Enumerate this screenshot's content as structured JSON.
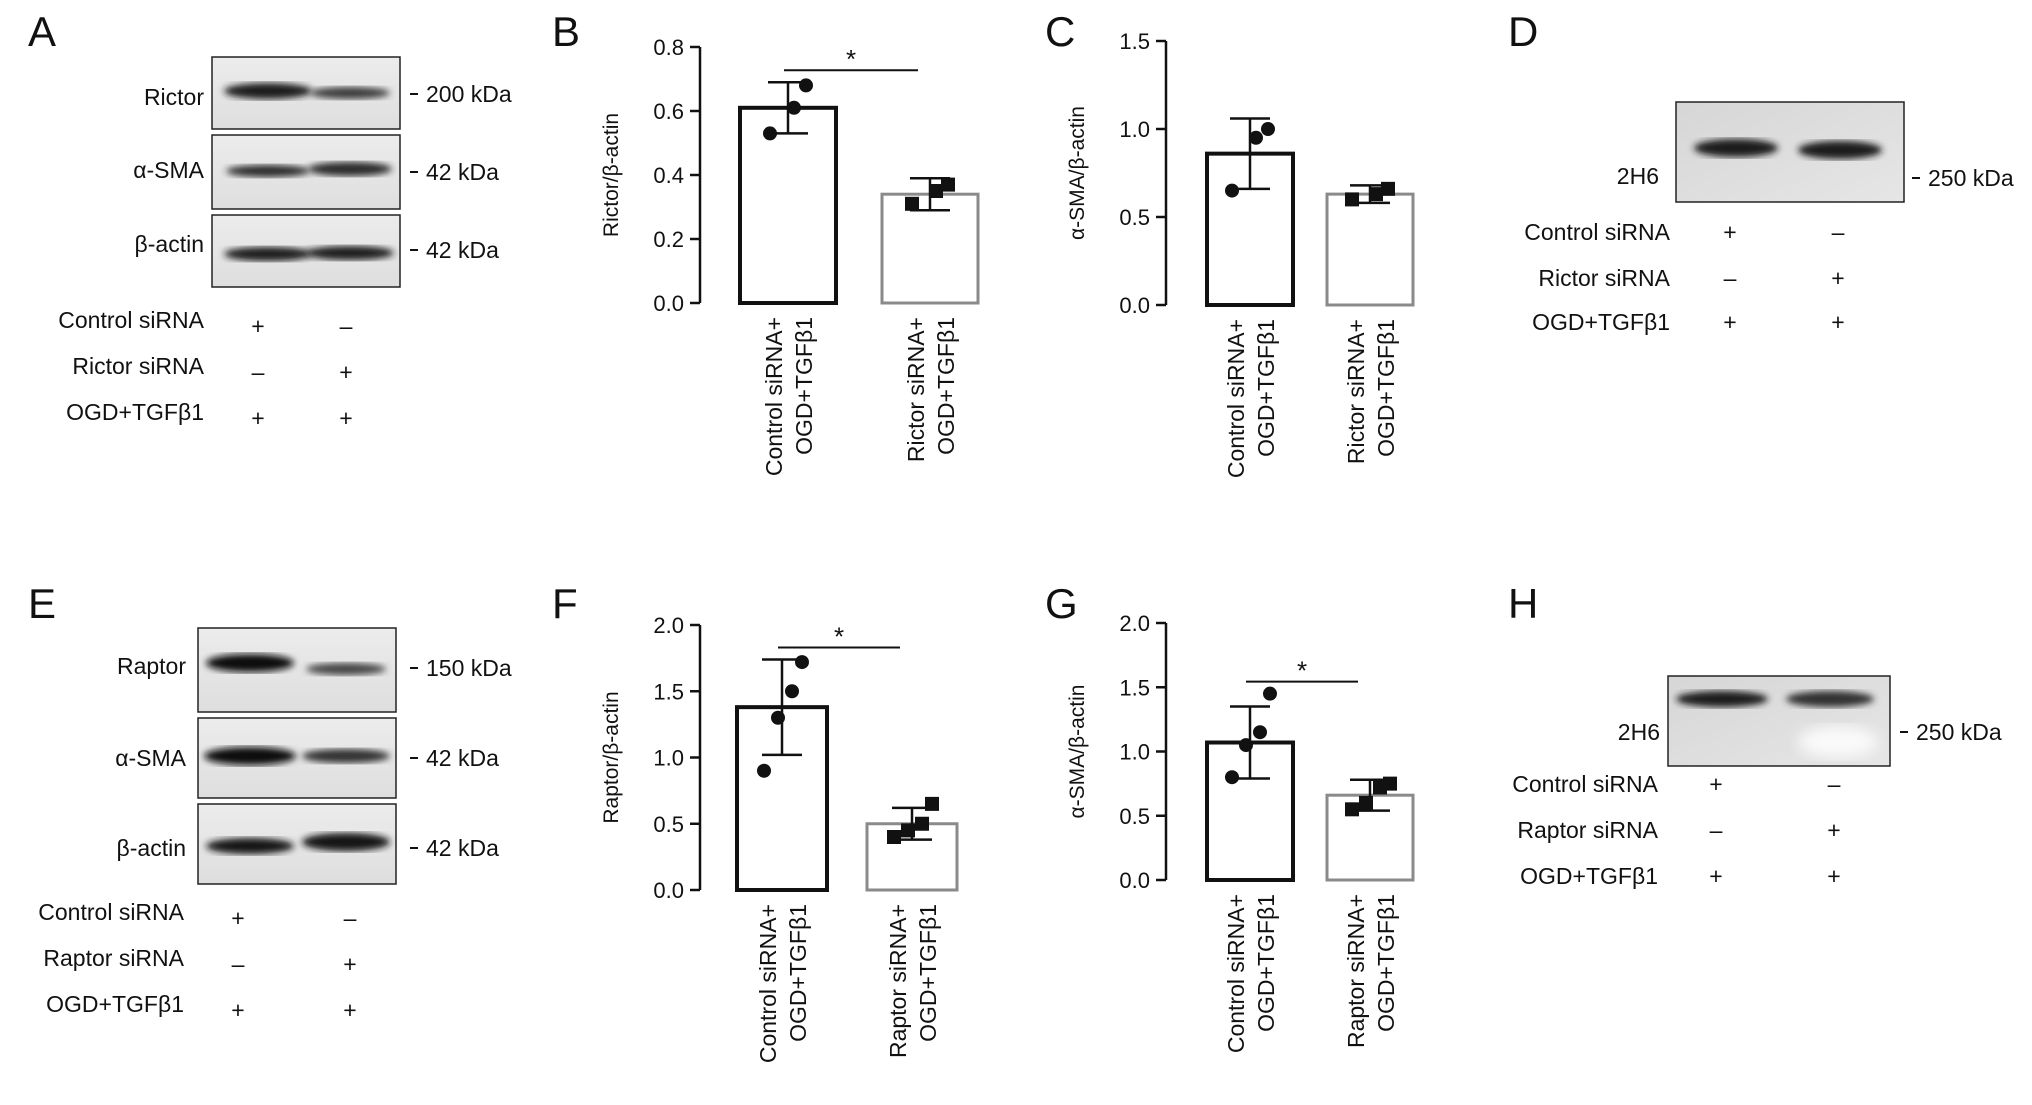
{
  "blots": [
    {
      "panel": "A",
      "bands": [
        {
          "label": "Rictor",
          "marker": "200 kDa"
        },
        {
          "label": "α-SMA",
          "marker": "42 kDa"
        },
        {
          "label": "β-actin",
          "marker": "42 kDa"
        }
      ],
      "conditions": [
        {
          "label": "Control siRNA",
          "signs": [
            "+",
            "–"
          ]
        },
        {
          "label": "Rictor siRNA",
          "signs": [
            "–",
            "+"
          ]
        },
        {
          "label": "OGD+TGFβ1",
          "signs": [
            "+",
            "+"
          ]
        }
      ]
    },
    {
      "panel": "D",
      "bands": [
        {
          "label": "2H6",
          "marker": "250 kDa"
        }
      ],
      "conditions": [
        {
          "label": "Control siRNA",
          "signs": [
            "+",
            "–"
          ]
        },
        {
          "label": "Rictor siRNA",
          "signs": [
            "–",
            "+"
          ]
        },
        {
          "label": "OGD+TGFβ1",
          "signs": [
            "+",
            "+"
          ]
        }
      ]
    },
    {
      "panel": "E",
      "bands": [
        {
          "label": "Raptor",
          "marker": "150 kDa"
        },
        {
          "label": "α-SMA",
          "marker": "42 kDa"
        },
        {
          "label": "β-actin",
          "marker": "42 kDa"
        }
      ],
      "conditions": [
        {
          "label": "Control siRNA",
          "signs": [
            "+",
            "–"
          ]
        },
        {
          "label": "Raptor siRNA",
          "signs": [
            "–",
            "+"
          ]
        },
        {
          "label": "OGD+TGFβ1",
          "signs": [
            "+",
            "+"
          ]
        }
      ]
    },
    {
      "panel": "H",
      "bands": [
        {
          "label": "2H6",
          "marker": "250 kDa"
        }
      ],
      "conditions": [
        {
          "label": "Control siRNA",
          "signs": [
            "+",
            "–"
          ]
        },
        {
          "label": "Raptor siRNA",
          "signs": [
            "–",
            "+"
          ]
        },
        {
          "label": "OGD+TGFβ1",
          "signs": [
            "+",
            "+"
          ]
        }
      ]
    }
  ],
  "chart_data": [
    {
      "panel": "B",
      "type": "bar",
      "categories": [
        [
          "Control siRNA+",
          "OGD+TGFβ1"
        ],
        [
          "Rictor siRNA+",
          "OGD+TGFβ1"
        ]
      ],
      "values": [
        0.61,
        0.34
      ],
      "errors": [
        0.08,
        0.05
      ],
      "points": [
        [
          0.53,
          0.61,
          0.68
        ],
        [
          0.31,
          0.35,
          0.37
        ]
      ],
      "ylabel": "Rictor/β-actin",
      "ylim": [
        0,
        0.8
      ],
      "yticks": [
        "0.0",
        "0.2",
        "0.4",
        "0.6",
        "0.8"
      ],
      "bar_colors": [
        "#111111",
        "#8a8a8a"
      ],
      "significance": "*"
    },
    {
      "panel": "C",
      "type": "bar",
      "categories": [
        [
          "Control siRNA+",
          "OGD+TGFβ1"
        ],
        [
          "Rictor siRNA+",
          "OGD+TGFβ1"
        ]
      ],
      "values": [
        0.86,
        0.63
      ],
      "errors": [
        0.2,
        0.05
      ],
      "points": [
        [
          0.65,
          0.95,
          1.0
        ],
        [
          0.6,
          0.63,
          0.66
        ]
      ],
      "ylabel": "α-SMA/β-actin",
      "ylim": [
        0,
        1.5
      ],
      "yticks": [
        "0.0",
        "0.5",
        "1.0",
        "1.5"
      ],
      "bar_colors": [
        "#111111",
        "#8a8a8a"
      ],
      "significance": ""
    },
    {
      "panel": "F",
      "type": "bar",
      "categories": [
        [
          "Control siRNA+",
          "OGD+TGFβ1"
        ],
        [
          "Raptor siRNA+",
          "OGD+TGFβ1"
        ]
      ],
      "values": [
        1.38,
        0.5
      ],
      "errors": [
        0.36,
        0.12
      ],
      "points": [
        [
          0.9,
          1.3,
          1.5,
          1.72
        ],
        [
          0.4,
          0.45,
          0.5,
          0.65
        ]
      ],
      "ylabel": "Raptor/β-actin",
      "ylim": [
        0,
        2.0
      ],
      "yticks": [
        "0.0",
        "0.5",
        "1.0",
        "1.5",
        "2.0"
      ],
      "bar_colors": [
        "#111111",
        "#8a8a8a"
      ],
      "significance": "*"
    },
    {
      "panel": "G",
      "type": "bar",
      "categories": [
        [
          "Control siRNA+",
          "OGD+TGFβ1"
        ],
        [
          "Raptor siRNA+",
          "OGD+TGFβ1"
        ]
      ],
      "values": [
        1.07,
        0.66
      ],
      "errors": [
        0.28,
        0.12
      ],
      "points": [
        [
          0.8,
          1.05,
          1.15,
          1.45
        ],
        [
          0.55,
          0.6,
          0.72,
          0.75
        ]
      ],
      "ylabel": "α-SMA/β-actin",
      "ylim": [
        0,
        2.0
      ],
      "yticks": [
        "0.0",
        "0.5",
        "1.0",
        "1.5",
        "2.0"
      ],
      "bar_colors": [
        "#111111",
        "#8a8a8a"
      ],
      "significance": "*"
    }
  ]
}
